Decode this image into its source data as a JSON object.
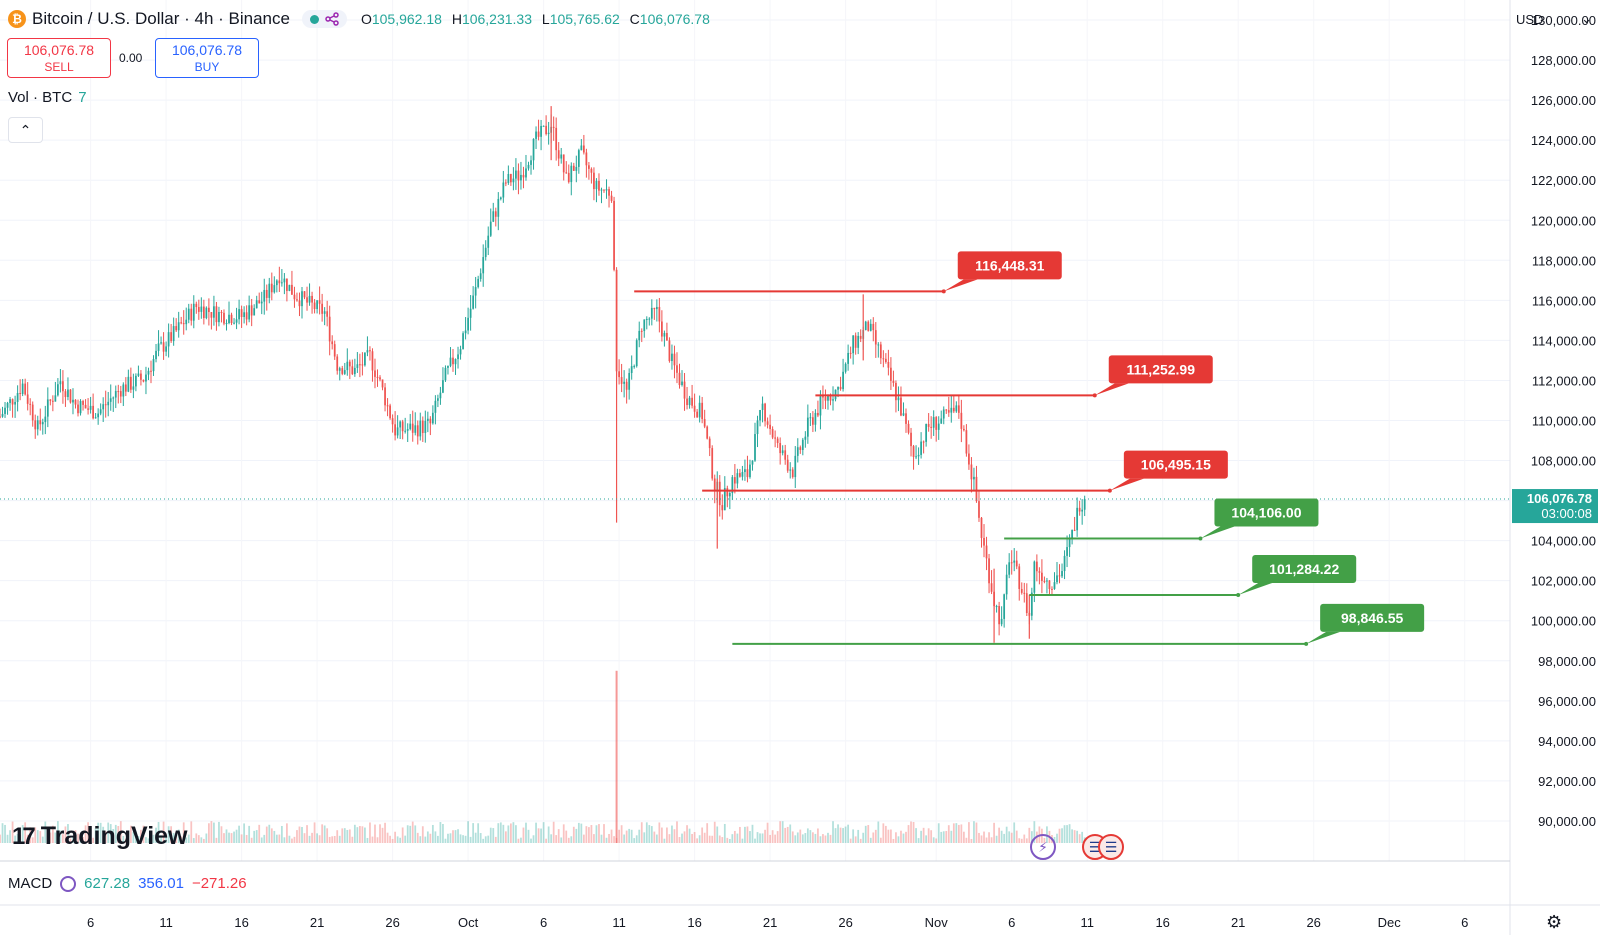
{
  "header": {
    "symbol": "Bitcoin / U.S. Dollar · 4h · Binance",
    "coin_icon": "₿",
    "ohlc": {
      "o_label": "O",
      "o": "105,962.18",
      "h_label": "H",
      "h": "106,231.33",
      "l_label": "L",
      "l": "105,765.62",
      "c_label": "C",
      "c": "106,076.78"
    }
  },
  "trade": {
    "sell_price": "106,076.78",
    "sell_label": "SELL",
    "spread": "0.00",
    "buy_price": "106,076.78",
    "buy_label": "BUY"
  },
  "volume_legend": {
    "label": "Vol · BTC",
    "value": "7"
  },
  "collapse_icon": "chevron-up-icon",
  "currency": "USD",
  "logo": "TradingView",
  "macd": {
    "label": "MACD",
    "v1": "627.28",
    "v2": "356.01",
    "v3": "−271.26"
  },
  "colors": {
    "up": "#26a69a",
    "down": "#ef5350",
    "resistance": "#e53935",
    "support": "#43a047",
    "grid": "#f0f3fa"
  },
  "chart_data": {
    "type": "candlestick",
    "interval": "4h",
    "ylim": [
      88000,
      131000
    ],
    "y_ticks": [
      90000,
      92000,
      94000,
      96000,
      98000,
      100000,
      102000,
      104000,
      106000,
      108000,
      110000,
      112000,
      114000,
      116000,
      118000,
      120000,
      122000,
      124000,
      126000,
      128000,
      130000
    ],
    "x_ticks": [
      "6",
      "11",
      "16",
      "21",
      "26",
      "Oct",
      "6",
      "11",
      "16",
      "21",
      "26",
      "Nov",
      "6",
      "11",
      "16",
      "21",
      "26",
      "Dec",
      "6"
    ],
    "x_tick_dates": [
      "2025-09-06",
      "2025-09-11",
      "2025-09-16",
      "2025-09-21",
      "2025-09-26",
      "2025-10-01",
      "2025-10-06",
      "2025-10-11",
      "2025-10-16",
      "2025-10-21",
      "2025-10-26",
      "2025-11-01",
      "2025-11-06",
      "2025-11-11",
      "2025-11-16",
      "2025-11-21",
      "2025-11-26",
      "2025-12-01",
      "2025-12-06"
    ],
    "xlim": [
      "2025-08-31T00:00",
      "2025-12-09T00:00"
    ],
    "price_path": [
      [
        "2025-08-31T00:00",
        110200
      ],
      [
        "2025-09-01T12:00",
        111800
      ],
      [
        "2025-09-02T12:00",
        109600
      ],
      [
        "2025-09-04T00:00",
        112000
      ],
      [
        "2025-09-05T00:00",
        110800
      ],
      [
        "2025-09-06T12:00",
        110400
      ],
      [
        "2025-09-08T00:00",
        111600
      ],
      [
        "2025-09-09T12:00",
        112100
      ],
      [
        "2025-09-10T12:00",
        113500
      ],
      [
        "2025-09-11T12:00",
        114300
      ],
      [
        "2025-09-13T00:00",
        115700
      ],
      [
        "2025-09-14T12:00",
        115300
      ],
      [
        "2025-09-16T00:00",
        115200
      ],
      [
        "2025-09-17T12:00",
        116100
      ],
      [
        "2025-09-18T12:00",
        117300
      ],
      [
        "2025-09-19T12:00",
        116300
      ],
      [
        "2025-09-20T12:00",
        115800
      ],
      [
        "2025-09-21T12:00",
        115400
      ],
      [
        "2025-09-22T08:00",
        112800
      ],
      [
        "2025-09-23T12:00",
        112500
      ],
      [
        "2025-09-24T12:00",
        113200
      ],
      [
        "2025-09-25T08:00",
        111500
      ],
      [
        "2025-09-26T04:00",
        109500
      ],
      [
        "2025-09-27T12:00",
        109600
      ],
      [
        "2025-09-28T12:00",
        109800
      ],
      [
        "2025-09-29T12:00",
        112200
      ],
      [
        "2025-09-30T12:00",
        113800
      ],
      [
        "2025-10-01T12:00",
        116500
      ],
      [
        "2025-10-02T12:00",
        119800
      ],
      [
        "2025-10-03T12:00",
        121900
      ],
      [
        "2025-10-04T12:00",
        122300
      ],
      [
        "2025-10-05T12:00",
        124000
      ],
      [
        "2025-10-06T12:00",
        124800
      ],
      [
        "2025-10-07T12:00",
        122000
      ],
      [
        "2025-10-08T12:00",
        123300
      ],
      [
        "2025-10-09T12:00",
        121600
      ],
      [
        "2025-10-10T12:00",
        121400
      ],
      [
        "2025-10-10T20:00",
        112800
      ],
      [
        "2025-10-11T12:00",
        111400
      ],
      [
        "2025-10-12T12:00",
        114800
      ],
      [
        "2025-10-13T12:00",
        115400
      ],
      [
        "2025-10-14T12:00",
        112900
      ],
      [
        "2025-10-15T12:00",
        111200
      ],
      [
        "2025-10-16T12:00",
        110300
      ],
      [
        "2025-10-17T08:00",
        106800
      ],
      [
        "2025-10-17T20:00",
        105900
      ],
      [
        "2025-10-18T12:00",
        107100
      ],
      [
        "2025-10-19T12:00",
        107300
      ],
      [
        "2025-10-20T12:00",
        110700
      ],
      [
        "2025-10-21T12:00",
        108600
      ],
      [
        "2025-10-22T12:00",
        107500
      ],
      [
        "2025-10-23T12:00",
        109700
      ],
      [
        "2025-10-24T12:00",
        111000
      ],
      [
        "2025-10-25T12:00",
        111600
      ],
      [
        "2025-10-26T12:00",
        113800
      ],
      [
        "2025-10-27T12:00",
        114700
      ],
      [
        "2025-10-28T12:00",
        112900
      ],
      [
        "2025-10-29T12:00",
        111000
      ],
      [
        "2025-10-30T12:00",
        108200
      ],
      [
        "2025-10-31T12:00",
        109700
      ],
      [
        "2025-11-01T12:00",
        110100
      ],
      [
        "2025-11-02T12:00",
        110500
      ],
      [
        "2025-11-03T12:00",
        106800
      ],
      [
        "2025-11-04T00:00",
        104300
      ],
      [
        "2025-11-04T20:00",
        101000
      ],
      [
        "2025-11-05T08:00",
        99800
      ],
      [
        "2025-11-05T20:00",
        103200
      ],
      [
        "2025-11-06T12:00",
        102000
      ],
      [
        "2025-11-07T04:00",
        100200
      ],
      [
        "2025-11-07T12:00",
        102800
      ],
      [
        "2025-11-08T12:00",
        101900
      ],
      [
        "2025-11-09T08:00",
        102500
      ],
      [
        "2025-11-10T00:00",
        104300
      ],
      [
        "2025-11-10T12:00",
        105900
      ],
      [
        "2025-11-10T20:00",
        106076.78
      ]
    ],
    "spikes": [
      [
        "2025-10-10T20:00",
        104900,
        113500
      ],
      [
        "2025-10-17T12:00",
        103600,
        107100
      ],
      [
        "2025-11-04T20:00",
        98900,
        102600
      ],
      [
        "2025-11-07T04:00",
        99100,
        101300
      ],
      [
        "2025-10-06T12:00",
        123000,
        125700
      ],
      [
        "2025-10-27T04:00",
        113000,
        116300
      ]
    ],
    "current_price": 106076.78,
    "price_label": "106,076.78",
    "countdown": "03:00:08",
    "levels": [
      {
        "price": 116448.31,
        "label": "116,448.31",
        "kind": "resistance",
        "from": "2025-10-12T00:00",
        "to": "2025-11-01T12:00"
      },
      {
        "price": 111252.99,
        "label": "111,252.99",
        "kind": "resistance",
        "from": "2025-10-24T00:00",
        "to": "2025-11-11T12:00"
      },
      {
        "price": 106495.15,
        "label": "106,495.15",
        "kind": "resistance",
        "from": "2025-10-16T12:00",
        "to": "2025-11-12T12:00"
      },
      {
        "price": 104106.0,
        "label": "104,106.00",
        "kind": "support",
        "from": "2025-11-05T12:00",
        "to": "2025-11-18T12:00"
      },
      {
        "price": 101284.22,
        "label": "101,284.22",
        "kind": "support",
        "from": "2025-11-07T04:00",
        "to": "2025-11-21T00:00"
      },
      {
        "price": 98846.55,
        "label": "98,846.55",
        "kind": "support",
        "from": "2025-10-18T12:00",
        "to": "2025-11-25T12:00"
      }
    ],
    "volume_spike_date": "2025-10-10T20:00"
  }
}
